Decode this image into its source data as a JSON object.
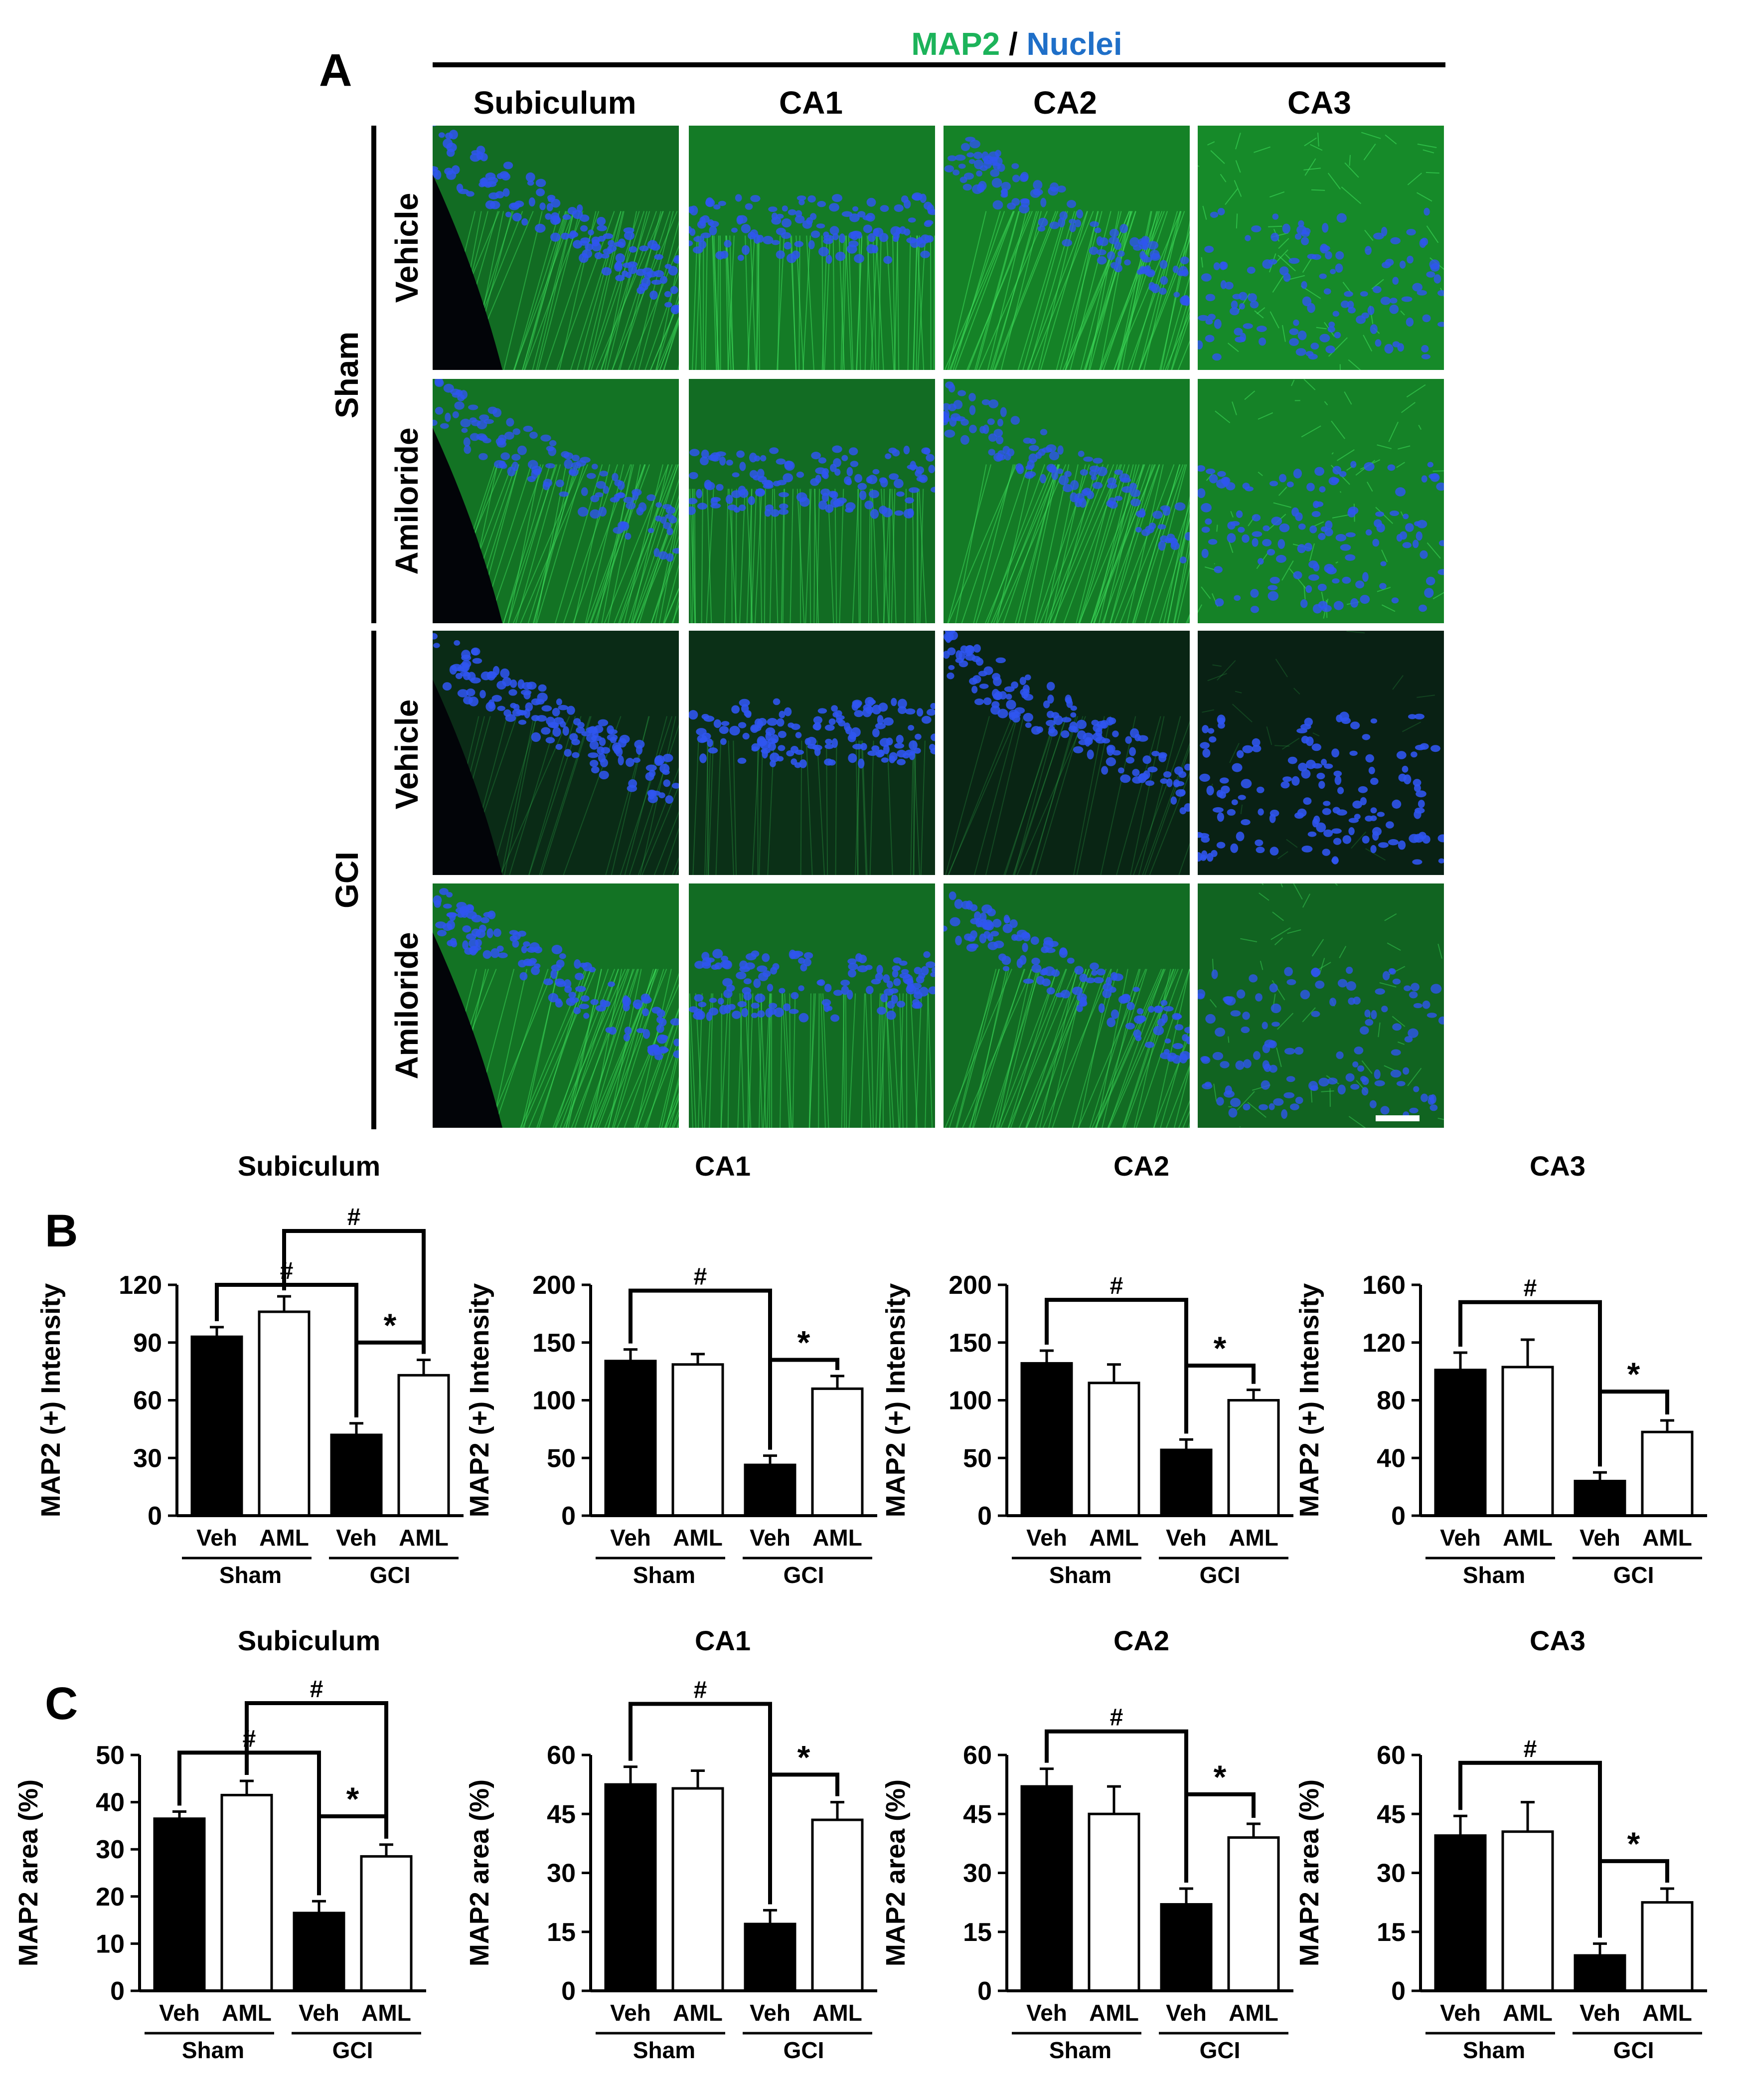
{
  "panel_a": {
    "label": "A",
    "stain_label_1": "MAP2",
    "stain_separator": " / ",
    "stain_label_2": "Nuclei",
    "stain_colors": {
      "map2": "#1cb35a",
      "nuclei": "#1f6fc8"
    },
    "columns": [
      "Subiculum",
      "CA1",
      "CA2",
      "CA3"
    ],
    "groups": [
      {
        "name": "Sham",
        "rows": [
          "Vehicle",
          "Amiloride"
        ]
      },
      {
        "name": "GCI",
        "rows": [
          "Vehicle",
          "Amiloride"
        ]
      }
    ],
    "micrographs": [
      [
        {
          "green": 0.55,
          "blue": 0.75,
          "layer": "diagonal"
        },
        {
          "green": 0.65,
          "blue": 0.7,
          "layer": "band"
        },
        {
          "green": 0.7,
          "blue": 0.6,
          "layer": "diagonal"
        },
        {
          "green": 0.75,
          "blue": 0.65,
          "layer": "scatter"
        }
      ],
      [
        {
          "green": 0.6,
          "blue": 0.6,
          "layer": "diagonal"
        },
        {
          "green": 0.55,
          "blue": 0.7,
          "layer": "band"
        },
        {
          "green": 0.65,
          "blue": 0.6,
          "layer": "diagonal"
        },
        {
          "green": 0.7,
          "blue": 0.7,
          "layer": "scatter"
        }
      ],
      [
        {
          "green": 0.12,
          "blue": 0.8,
          "layer": "diagonal"
        },
        {
          "green": 0.15,
          "blue": 0.85,
          "layer": "band"
        },
        {
          "green": 0.08,
          "blue": 0.8,
          "layer": "diagonal"
        },
        {
          "green": 0.05,
          "blue": 0.85,
          "layer": "scatter"
        }
      ],
      [
        {
          "green": 0.6,
          "blue": 0.75,
          "layer": "diagonal"
        },
        {
          "green": 0.55,
          "blue": 0.75,
          "layer": "band"
        },
        {
          "green": 0.55,
          "blue": 0.7,
          "layer": "diagonal"
        },
        {
          "green": 0.5,
          "blue": 0.6,
          "layer": "scatter"
        }
      ]
    ]
  },
  "panel_b": {
    "label": "B"
  },
  "panel_c": {
    "label": "C"
  },
  "common": {
    "bar_labels": [
      "Veh",
      "AML",
      "Veh",
      "AML"
    ],
    "group_labels": [
      "Sham",
      "GCI"
    ],
    "bar_fills": [
      "#000000",
      "#ffffff",
      "#000000",
      "#ffffff"
    ],
    "hash_symbol": "#",
    "star_symbol": "*"
  },
  "chart_data": [
    {
      "panel": "B",
      "type": "bar",
      "title": "Subiculum",
      "ylabel": "MAP2 (+) Intensity",
      "ylim": [
        0,
        120
      ],
      "yticks": [
        0,
        30,
        60,
        90,
        120
      ],
      "categories": [
        "Sham Veh",
        "Sham AML",
        "GCI Veh",
        "GCI AML"
      ],
      "values": [
        93,
        106,
        42,
        73
      ],
      "errors": [
        5,
        8,
        6,
        8
      ],
      "brackets": [
        {
          "from": 0,
          "to": 2,
          "symbol": "#",
          "top": 120
        },
        {
          "from": 1,
          "to": 3,
          "symbol": "#",
          "top": 148
        },
        {
          "from": 2,
          "to": 3,
          "symbol": "*",
          "top": 90
        }
      ]
    },
    {
      "panel": "B",
      "type": "bar",
      "title": "CA1",
      "ylabel": "MAP2 (+) Intensity",
      "ylim": [
        0,
        200
      ],
      "yticks": [
        0,
        50,
        100,
        150,
        200
      ],
      "categories": [
        "Sham Veh",
        "Sham AML",
        "GCI Veh",
        "GCI AML"
      ],
      "values": [
        134,
        131,
        44,
        110
      ],
      "errors": [
        10,
        9,
        8,
        11
      ],
      "brackets": [
        {
          "from": 0,
          "to": 2,
          "symbol": "#",
          "top": 195
        },
        {
          "from": 2,
          "to": 3,
          "symbol": "*",
          "top": 135
        }
      ]
    },
    {
      "panel": "B",
      "type": "bar",
      "title": "CA2",
      "ylabel": "MAP2 (+) Intensity",
      "ylim": [
        0,
        200
      ],
      "yticks": [
        0,
        50,
        100,
        150,
        200
      ],
      "categories": [
        "Sham Veh",
        "Sham AML",
        "GCI Veh",
        "GCI AML"
      ],
      "values": [
        132,
        115,
        57,
        100
      ],
      "errors": [
        11,
        16,
        9,
        9
      ],
      "brackets": [
        {
          "from": 0,
          "to": 2,
          "symbol": "#",
          "top": 187
        },
        {
          "from": 2,
          "to": 3,
          "symbol": "*",
          "top": 130
        }
      ]
    },
    {
      "panel": "B",
      "type": "bar",
      "title": "CA3",
      "ylabel": "MAP2 (+) Intensity",
      "ylim": [
        0,
        160
      ],
      "yticks": [
        0,
        40,
        80,
        120,
        160
      ],
      "categories": [
        "Sham Veh",
        "Sham AML",
        "GCI Veh",
        "GCI AML"
      ],
      "values": [
        101,
        103,
        24,
        58
      ],
      "errors": [
        12,
        19,
        6,
        8
      ],
      "brackets": [
        {
          "from": 0,
          "to": 2,
          "symbol": "#",
          "top": 148
        },
        {
          "from": 2,
          "to": 3,
          "symbol": "*",
          "top": 86
        }
      ]
    },
    {
      "panel": "C",
      "type": "bar",
      "title": "Subiculum",
      "ylabel": "MAP2 area (%)",
      "ylim": [
        0,
        50
      ],
      "yticks": [
        0,
        10,
        20,
        30,
        40,
        50
      ],
      "categories": [
        "Sham Veh",
        "Sham AML",
        "GCI Veh",
        "GCI AML"
      ],
      "values": [
        36.5,
        41.5,
        16.5,
        28.5
      ],
      "errors": [
        1.5,
        3,
        2.5,
        2.5
      ],
      "brackets": [
        {
          "from": 0,
          "to": 2,
          "symbol": "#",
          "top": 50.5
        },
        {
          "from": 1,
          "to": 3,
          "symbol": "#",
          "top": 61
        },
        {
          "from": 2,
          "to": 3,
          "symbol": "*",
          "top": 37
        }
      ]
    },
    {
      "panel": "C",
      "type": "bar",
      "title": "CA1",
      "ylabel": "MAP2 area (%)",
      "ylim": [
        0,
        60
      ],
      "yticks": [
        0,
        15,
        30,
        45,
        60
      ],
      "categories": [
        "Sham Veh",
        "Sham AML",
        "GCI Veh",
        "GCI AML"
      ],
      "values": [
        52.5,
        51.5,
        17,
        43.5
      ],
      "errors": [
        4.5,
        4.5,
        3.5,
        4.5
      ],
      "brackets": [
        {
          "from": 0,
          "to": 2,
          "symbol": "#",
          "top": 73
        },
        {
          "from": 2,
          "to": 3,
          "symbol": "*",
          "top": 55
        }
      ]
    },
    {
      "panel": "C",
      "type": "bar",
      "title": "CA2",
      "ylabel": "MAP2 area (%)",
      "ylim": [
        0,
        60
      ],
      "yticks": [
        0,
        15,
        30,
        45,
        60
      ],
      "categories": [
        "Sham Veh",
        "Sham AML",
        "GCI Veh",
        "GCI AML"
      ],
      "values": [
        52,
        45,
        22,
        39
      ],
      "errors": [
        4.5,
        7,
        4,
        3.5
      ],
      "brackets": [
        {
          "from": 0,
          "to": 2,
          "symbol": "#",
          "top": 66
        },
        {
          "from": 2,
          "to": 3,
          "symbol": "*",
          "top": 50
        }
      ]
    },
    {
      "panel": "C",
      "type": "bar",
      "title": "CA3",
      "ylabel": "MAP2 area (%)",
      "ylim": [
        0,
        60
      ],
      "yticks": [
        0,
        15,
        30,
        45,
        60
      ],
      "categories": [
        "Sham Veh",
        "Sham AML",
        "GCI Veh",
        "GCI AML"
      ],
      "values": [
        39.5,
        40.5,
        9,
        22.5
      ],
      "errors": [
        5,
        7.5,
        3,
        3.5
      ],
      "brackets": [
        {
          "from": 0,
          "to": 2,
          "symbol": "#",
          "top": 58
        },
        {
          "from": 2,
          "to": 3,
          "symbol": "*",
          "top": 33
        }
      ]
    }
  ]
}
